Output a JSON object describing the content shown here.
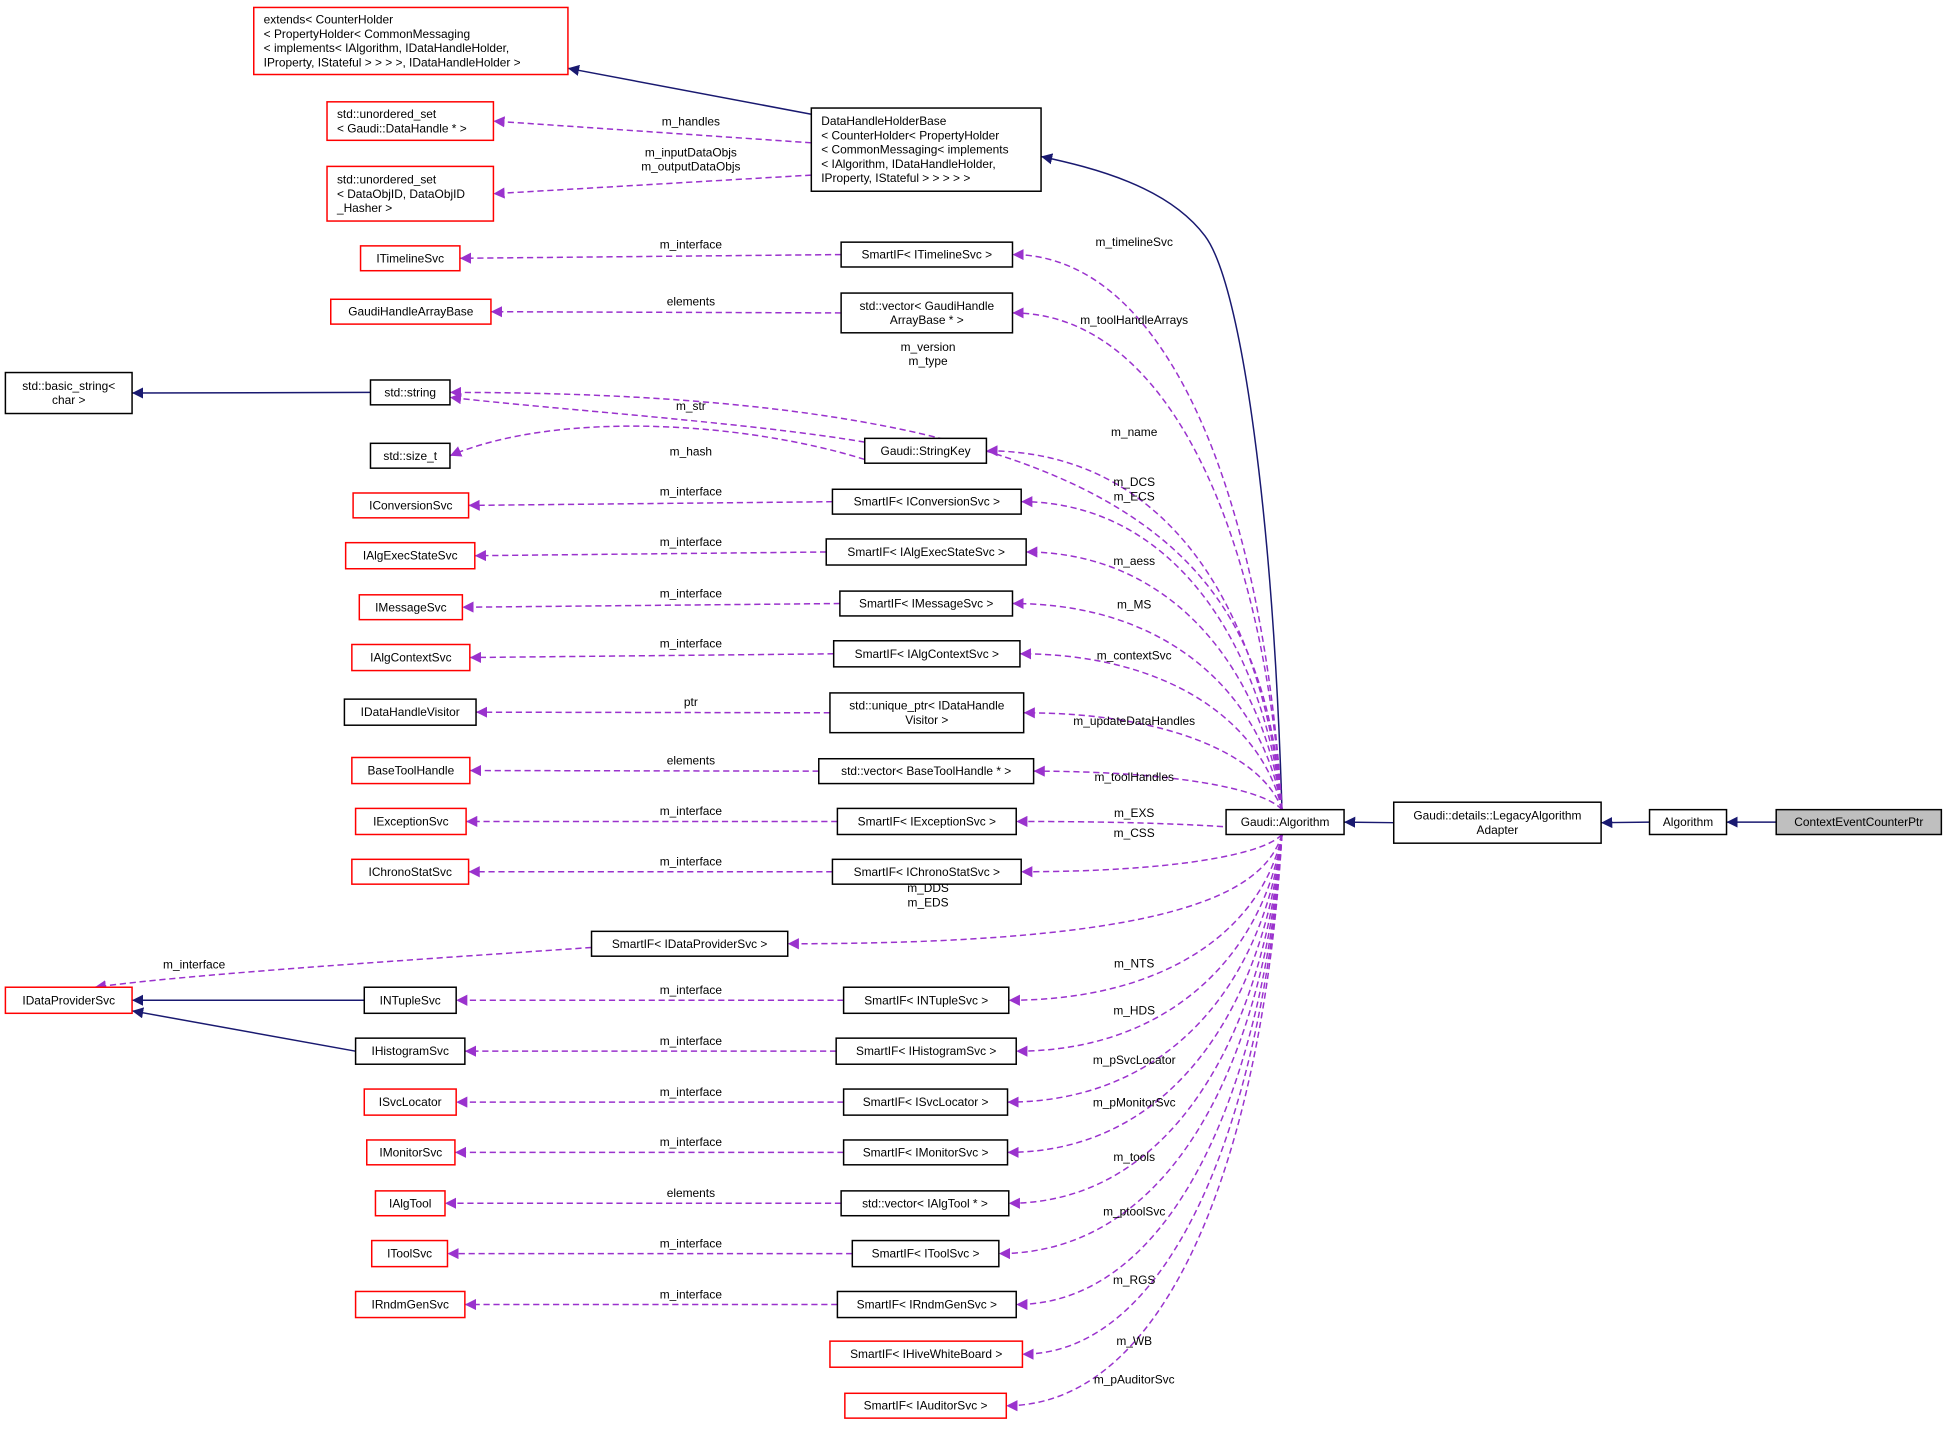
{
  "colors": {
    "inherit_edge": "#191970",
    "member_edge": "#9a32cd",
    "external_border": "#ff0000",
    "node_border": "#000000",
    "focus_fill": "#bfbfbf"
  },
  "nodes": [
    {
      "id": "extends",
      "lines": [
        "extends< CounterHolder",
        "< PropertyHolder< CommonMessaging",
        "< implements< IAlgorithm, IDataHandleHolder,",
        " IProperty, IStateful > > > >, IDataHandleHolder >"
      ],
      "style": "external",
      "align": "left"
    },
    {
      "id": "uset_dh",
      "lines": [
        "std::unordered_set",
        "< Gaudi::DataHandle * >"
      ],
      "style": "external",
      "align": "left"
    },
    {
      "id": "uset_doid",
      "lines": [
        "std::unordered_set",
        "< DataObjID, DataObjID",
        "_Hasher >"
      ],
      "style": "external",
      "align": "left"
    },
    {
      "id": "dhhb",
      "lines": [
        "DataHandleHolderBase",
        "< CounterHolder< PropertyHolder",
        "< CommonMessaging< implements",
        "< IAlgorithm, IDataHandleHolder,",
        "IProperty, IStateful > > > > >"
      ],
      "style": "normal",
      "align": "left"
    },
    {
      "id": "itimeline",
      "lines": [
        "ITimelineSvc"
      ],
      "style": "external"
    },
    {
      "id": "sm_timeline",
      "lines": [
        "SmartIF< ITimelineSvc >"
      ],
      "style": "normal"
    },
    {
      "id": "ghab",
      "lines": [
        "GaudiHandleArrayBase"
      ],
      "style": "external"
    },
    {
      "id": "vec_ghab",
      "lines": [
        "std::vector< GaudiHandle",
        "ArrayBase * >"
      ],
      "style": "normal"
    },
    {
      "id": "basic_string",
      "lines": [
        "std::basic_string<",
        "char >"
      ],
      "style": "normal"
    },
    {
      "id": "string",
      "lines": [
        "std::string"
      ],
      "style": "normal"
    },
    {
      "id": "size_t",
      "lines": [
        "std::size_t"
      ],
      "style": "normal"
    },
    {
      "id": "stringkey",
      "lines": [
        "Gaudi::StringKey"
      ],
      "style": "normal"
    },
    {
      "id": "iconv",
      "lines": [
        "IConversionSvc"
      ],
      "style": "external"
    },
    {
      "id": "sm_conv",
      "lines": [
        "SmartIF< IConversionSvc >"
      ],
      "style": "normal"
    },
    {
      "id": "iaes",
      "lines": [
        "IAlgExecStateSvc"
      ],
      "style": "external"
    },
    {
      "id": "sm_aes",
      "lines": [
        "SmartIF< IAlgExecStateSvc >"
      ],
      "style": "normal"
    },
    {
      "id": "imsg",
      "lines": [
        "IMessageSvc"
      ],
      "style": "external"
    },
    {
      "id": "sm_msg",
      "lines": [
        "SmartIF< IMessageSvc >"
      ],
      "style": "normal"
    },
    {
      "id": "iactx",
      "lines": [
        "IAlgContextSvc"
      ],
      "style": "external"
    },
    {
      "id": "sm_actx",
      "lines": [
        "SmartIF< IAlgContextSvc >"
      ],
      "style": "normal"
    },
    {
      "id": "idhv",
      "lines": [
        "IDataHandleVisitor"
      ],
      "style": "normal"
    },
    {
      "id": "up_dhv",
      "lines": [
        "std::unique_ptr< IDataHandle",
        "Visitor >"
      ],
      "style": "normal"
    },
    {
      "id": "bth",
      "lines": [
        "BaseToolHandle"
      ],
      "style": "external"
    },
    {
      "id": "vec_bth",
      "lines": [
        "std::vector< BaseToolHandle * >"
      ],
      "style": "normal"
    },
    {
      "id": "iexc",
      "lines": [
        "IExceptionSvc"
      ],
      "style": "external"
    },
    {
      "id": "sm_exc",
      "lines": [
        "SmartIF< IExceptionSvc >"
      ],
      "style": "normal"
    },
    {
      "id": "ichrono",
      "lines": [
        "IChronoStatSvc"
      ],
      "style": "external"
    },
    {
      "id": "sm_chrono",
      "lines": [
        "SmartIF< IChronoStatSvc >"
      ],
      "style": "normal"
    },
    {
      "id": "sm_dp",
      "lines": [
        "SmartIF< IDataProviderSvc >"
      ],
      "style": "normal"
    },
    {
      "id": "idp",
      "lines": [
        "IDataProviderSvc"
      ],
      "style": "external"
    },
    {
      "id": "intuple",
      "lines": [
        "INTupleSvc"
      ],
      "style": "normal"
    },
    {
      "id": "ihist",
      "lines": [
        "IHistogramSvc"
      ],
      "style": "normal"
    },
    {
      "id": "sm_ntuple",
      "lines": [
        "SmartIF< INTupleSvc >"
      ],
      "style": "normal"
    },
    {
      "id": "sm_hist",
      "lines": [
        "SmartIF< IHistogramSvc >"
      ],
      "style": "normal"
    },
    {
      "id": "isvcloc",
      "lines": [
        "ISvcLocator"
      ],
      "style": "external"
    },
    {
      "id": "sm_svcloc",
      "lines": [
        "SmartIF< ISvcLocator >"
      ],
      "style": "normal"
    },
    {
      "id": "imon",
      "lines": [
        "IMonitorSvc"
      ],
      "style": "external"
    },
    {
      "id": "sm_mon",
      "lines": [
        "SmartIF< IMonitorSvc >"
      ],
      "style": "normal"
    },
    {
      "id": "ialgtool",
      "lines": [
        "IAlgTool"
      ],
      "style": "external"
    },
    {
      "id": "vec_algtool",
      "lines": [
        "std::vector< IAlgTool * >"
      ],
      "style": "normal"
    },
    {
      "id": "itoolsvc",
      "lines": [
        "IToolSvc"
      ],
      "style": "external"
    },
    {
      "id": "sm_toolsvc",
      "lines": [
        "SmartIF< IToolSvc >"
      ],
      "style": "normal"
    },
    {
      "id": "irndm",
      "lines": [
        "IRndmGenSvc"
      ],
      "style": "external"
    },
    {
      "id": "sm_rndm",
      "lines": [
        "SmartIF< IRndmGenSvc >"
      ],
      "style": "normal"
    },
    {
      "id": "sm_hwb",
      "lines": [
        "SmartIF< IHiveWhiteBoard >"
      ],
      "style": "external"
    },
    {
      "id": "sm_aud",
      "lines": [
        "SmartIF< IAuditorSvc >"
      ],
      "style": "external"
    },
    {
      "id": "galg",
      "lines": [
        "Gaudi::Algorithm"
      ],
      "style": "normal"
    },
    {
      "id": "legacy",
      "lines": [
        "Gaudi::details::LegacyAlgorithm",
        "Adapter"
      ],
      "style": "normal"
    },
    {
      "id": "algorithm",
      "lines": [
        "Algorithm"
      ],
      "style": "normal"
    },
    {
      "id": "cecp",
      "lines": [
        "ContextEventCounterPtr"
      ],
      "style": "focus"
    }
  ],
  "edges": [
    {
      "from": "legacy",
      "to": "galg",
      "kind": "inherit"
    },
    {
      "from": "algorithm",
      "to": "legacy",
      "kind": "inherit"
    },
    {
      "from": "cecp",
      "to": "algorithm",
      "kind": "inherit"
    },
    {
      "from": "galg",
      "to": "dhhb",
      "kind": "inherit"
    },
    {
      "from": "dhhb",
      "to": "extends",
      "kind": "inherit"
    },
    {
      "from": "string",
      "to": "basic_string",
      "kind": "inherit"
    },
    {
      "from": "intuple",
      "to": "idp",
      "kind": "inherit"
    },
    {
      "from": "ihist",
      "to": "idp",
      "kind": "inherit"
    },
    {
      "from": "dhhb",
      "to": "uset_dh",
      "kind": "member",
      "label": [
        "m_handles"
      ]
    },
    {
      "from": "dhhb",
      "to": "uset_doid",
      "kind": "member",
      "label": [
        "m_inputDataObjs",
        "m_outputDataObjs"
      ]
    },
    {
      "from": "sm_timeline",
      "to": "itimeline",
      "kind": "member",
      "label": [
        "m_interface"
      ]
    },
    {
      "from": "vec_ghab",
      "to": "ghab",
      "kind": "member",
      "label": [
        "elements"
      ]
    },
    {
      "from": "stringkey",
      "to": "string",
      "kind": "member",
      "label": [
        "m_str"
      ]
    },
    {
      "from": "stringkey",
      "to": "size_t",
      "kind": "member",
      "label": [
        "m_hash"
      ]
    },
    {
      "from": "sm_conv",
      "to": "iconv",
      "kind": "member",
      "label": [
        "m_interface"
      ]
    },
    {
      "from": "sm_aes",
      "to": "iaes",
      "kind": "member",
      "label": [
        "m_interface"
      ]
    },
    {
      "from": "sm_msg",
      "to": "imsg",
      "kind": "member",
      "label": [
        "m_interface"
      ]
    },
    {
      "from": "sm_actx",
      "to": "iactx",
      "kind": "member",
      "label": [
        "m_interface"
      ]
    },
    {
      "from": "up_dhv",
      "to": "idhv",
      "kind": "member",
      "label": [
        "ptr"
      ]
    },
    {
      "from": "vec_bth",
      "to": "bth",
      "kind": "member",
      "label": [
        "elements"
      ]
    },
    {
      "from": "sm_exc",
      "to": "iexc",
      "kind": "member",
      "label": [
        "m_interface"
      ]
    },
    {
      "from": "sm_chrono",
      "to": "ichrono",
      "kind": "member",
      "label": [
        "m_interface"
      ]
    },
    {
      "from": "sm_dp",
      "to": "idp",
      "kind": "member",
      "label": [
        "m_interface"
      ]
    },
    {
      "from": "sm_ntuple",
      "to": "intuple",
      "kind": "member",
      "label": [
        "m_interface"
      ]
    },
    {
      "from": "sm_hist",
      "to": "ihist",
      "kind": "member",
      "label": [
        "m_interface"
      ]
    },
    {
      "from": "sm_svcloc",
      "to": "isvcloc",
      "kind": "member",
      "label": [
        "m_interface"
      ]
    },
    {
      "from": "sm_mon",
      "to": "imon",
      "kind": "member",
      "label": [
        "m_interface"
      ]
    },
    {
      "from": "vec_algtool",
      "to": "ialgtool",
      "kind": "member",
      "label": [
        "elements"
      ]
    },
    {
      "from": "sm_toolsvc",
      "to": "itoolsvc",
      "kind": "member",
      "label": [
        "m_interface"
      ]
    },
    {
      "from": "sm_rndm",
      "to": "irndm",
      "kind": "member",
      "label": [
        "m_interface"
      ]
    },
    {
      "from": "galg",
      "to": "sm_timeline",
      "kind": "member",
      "label": [
        "m_timelineSvc"
      ]
    },
    {
      "from": "galg",
      "to": "vec_ghab",
      "kind": "member",
      "label": [
        "m_toolHandleArrays"
      ]
    },
    {
      "from": "galg",
      "to": "string",
      "kind": "member",
      "label": [
        "m_version",
        "m_type"
      ]
    },
    {
      "from": "galg",
      "to": "stringkey",
      "kind": "member",
      "label": [
        "m_name"
      ]
    },
    {
      "from": "galg",
      "to": "sm_conv",
      "kind": "member",
      "label": [
        "m_DCS",
        "m_ECS"
      ]
    },
    {
      "from": "galg",
      "to": "sm_aes",
      "kind": "member",
      "label": [
        "m_aess"
      ]
    },
    {
      "from": "galg",
      "to": "sm_msg",
      "kind": "member",
      "label": [
        "m_MS"
      ]
    },
    {
      "from": "galg",
      "to": "sm_actx",
      "kind": "member",
      "label": [
        "m_contextSvc"
      ]
    },
    {
      "from": "galg",
      "to": "up_dhv",
      "kind": "member",
      "label": [
        "m_updateDataHandles"
      ]
    },
    {
      "from": "galg",
      "to": "vec_bth",
      "kind": "member",
      "label": [
        "m_toolHandles"
      ]
    },
    {
      "from": "galg",
      "to": "sm_exc",
      "kind": "member",
      "label": [
        "m_EXS"
      ]
    },
    {
      "from": "galg",
      "to": "sm_chrono",
      "kind": "member",
      "label": [
        "m_CSS"
      ]
    },
    {
      "from": "galg",
      "to": "sm_dp",
      "kind": "member",
      "label": [
        "m_DDS",
        "m_EDS"
      ]
    },
    {
      "from": "galg",
      "to": "sm_ntuple",
      "kind": "member",
      "label": [
        "m_NTS"
      ]
    },
    {
      "from": "galg",
      "to": "sm_hist",
      "kind": "member",
      "label": [
        "m_HDS"
      ]
    },
    {
      "from": "galg",
      "to": "sm_svcloc",
      "kind": "member",
      "label": [
        "m_pSvcLocator"
      ]
    },
    {
      "from": "galg",
      "to": "sm_mon",
      "kind": "member",
      "label": [
        "m_pMonitorSvc"
      ]
    },
    {
      "from": "galg",
      "to": "vec_algtool",
      "kind": "member",
      "label": [
        "m_tools"
      ]
    },
    {
      "from": "galg",
      "to": "sm_toolsvc",
      "kind": "member",
      "label": [
        "m_ptoolSvc"
      ]
    },
    {
      "from": "galg",
      "to": "sm_rndm",
      "kind": "member",
      "label": [
        "m_RGS"
      ]
    },
    {
      "from": "galg",
      "to": "sm_hwb",
      "kind": "member",
      "label": [
        "m_WB"
      ]
    },
    {
      "from": "galg",
      "to": "sm_aud",
      "kind": "member",
      "label": [
        "m_pAuditorSvc"
      ]
    }
  ]
}
